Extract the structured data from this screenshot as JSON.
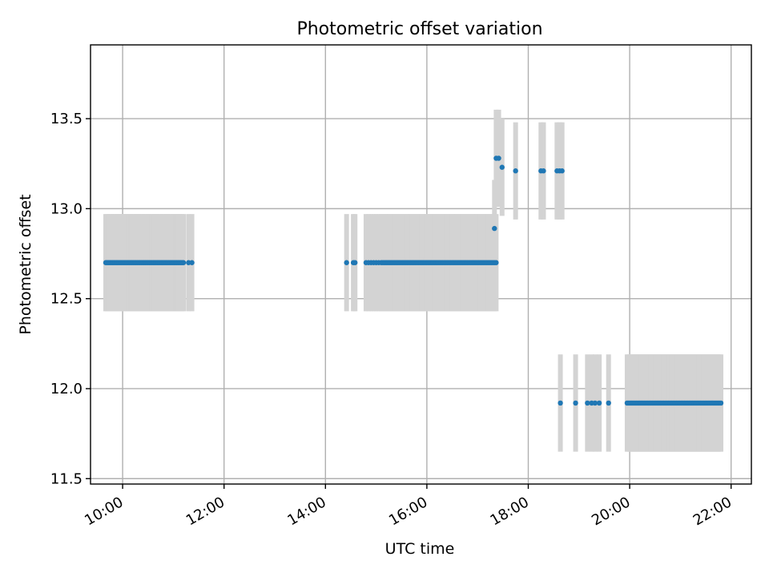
{
  "chart_data": {
    "type": "scatter",
    "title": "Photometric offset variation",
    "xlabel": "UTC time",
    "ylabel": "Photometric offset",
    "x_unit": "hours UTC",
    "xlim": [
      "09:22",
      "22:24"
    ],
    "ylim": [
      11.47,
      13.91
    ],
    "x_ticks": [
      "10:00",
      "12:00",
      "14:00",
      "16:00",
      "18:00",
      "20:00",
      "22:00"
    ],
    "y_ticks": [
      "11.5",
      "12.0",
      "12.5",
      "13.0",
      "13.5"
    ],
    "grid": true,
    "colors": {
      "point": "#1f77b4",
      "errorbar": "#d3d3d3",
      "grid": "#b0b0b0"
    },
    "errorbar_half_width": 0.27,
    "point_groups": [
      {
        "x_start": "09:40",
        "x_end": "11:12",
        "count": 60,
        "y": 12.7
      },
      {
        "x": [
          "11:18",
          "11:22"
        ],
        "y": 12.7
      },
      {
        "x": [
          "14:25",
          "14:33",
          "14:35",
          "14:48",
          "14:51",
          "14:54",
          "14:57",
          "15:00",
          "15:03",
          "15:06",
          "15:08"
        ],
        "y": 12.7
      },
      {
        "x_start": "15:10",
        "x_end": "17:22",
        "count": 70,
        "y": 12.7
      },
      {
        "x": [
          "17:20"
        ],
        "y": 12.89
      },
      {
        "x": [
          "17:22",
          "17:25"
        ],
        "y": 13.28
      },
      {
        "x": [
          "17:29"
        ],
        "y": 13.23
      },
      {
        "x": [
          "17:45"
        ],
        "y": 13.21
      },
      {
        "x": [
          "18:15",
          "18:18"
        ],
        "y": 13.21
      },
      {
        "x": [
          "18:34",
          "18:37",
          "18:40"
        ],
        "y": 13.21
      },
      {
        "x": [
          "18:38"
        ],
        "y": 11.92
      },
      {
        "x": [
          "18:56",
          "19:10",
          "19:15",
          "19:19",
          "19:24",
          "19:35"
        ],
        "y": 11.92
      },
      {
        "x_start": "19:57",
        "x_end": "21:48",
        "count": 60,
        "y": 11.92
      }
    ]
  }
}
